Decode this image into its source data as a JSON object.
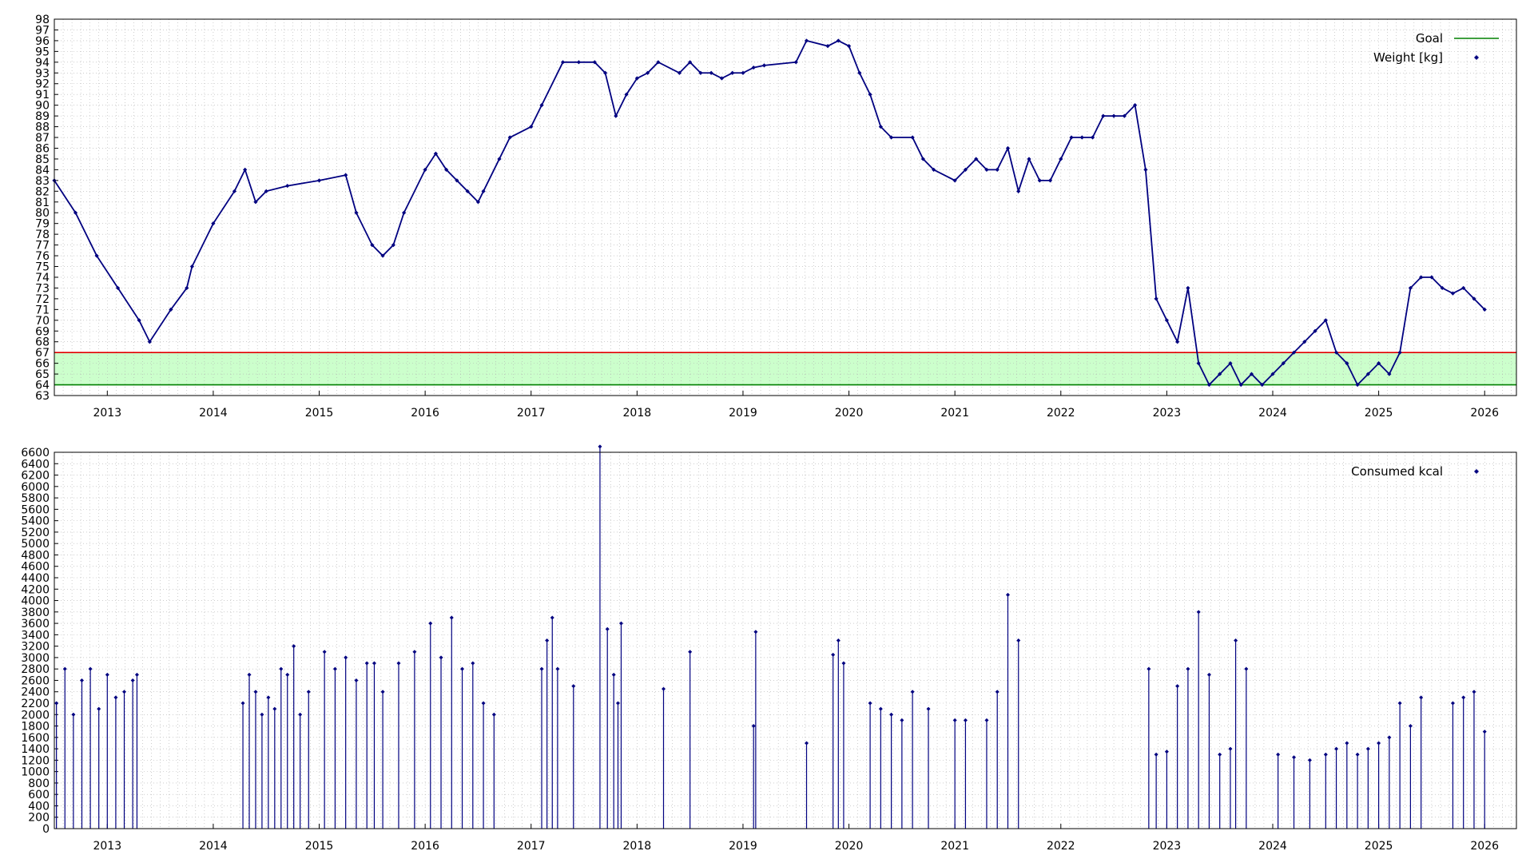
{
  "colors": {
    "series": "#000080",
    "goal": "#008000",
    "upper_limit": "#e00000",
    "goal_band": "#ccffcc",
    "grid": "#b0b0b0",
    "axis": "#000000"
  },
  "chart_data": [
    {
      "type": "line",
      "panel": "weight",
      "xlim": [
        2012.5,
        2026.3
      ],
      "ylim": [
        63,
        98
      ],
      "x_ticks": [
        2013,
        2014,
        2015,
        2016,
        2017,
        2018,
        2019,
        2020,
        2021,
        2022,
        2023,
        2024,
        2025,
        2026
      ],
      "y_ticks": [
        63,
        64,
        65,
        66,
        67,
        68,
        69,
        70,
        71,
        72,
        73,
        74,
        75,
        76,
        77,
        78,
        79,
        80,
        81,
        82,
        83,
        84,
        85,
        86,
        87,
        88,
        89,
        90,
        91,
        92,
        93,
        94,
        95,
        96,
        97,
        98
      ],
      "grid": true,
      "legend_position": "top-right",
      "goal_band": [
        64,
        67
      ],
      "legend": [
        {
          "label": "Goal",
          "style": "line"
        },
        {
          "label": "Weight [kg]",
          "style": "points"
        }
      ],
      "series": [
        {
          "name": "Weight [kg]",
          "x": [
            2012.5,
            2012.7,
            2012.9,
            2013.1,
            2013.3,
            2013.4,
            2013.6,
            2013.75,
            2013.8,
            2014.0,
            2014.2,
            2014.3,
            2014.4,
            2014.5,
            2014.7,
            2015.0,
            2015.25,
            2015.35,
            2015.5,
            2015.6,
            2015.7,
            2015.8,
            2016.0,
            2016.1,
            2016.2,
            2016.3,
            2016.4,
            2016.5,
            2016.55,
            2016.7,
            2016.8,
            2017.0,
            2017.1,
            2017.3,
            2017.45,
            2017.6,
            2017.7,
            2017.8,
            2017.9,
            2018.0,
            2018.1,
            2018.2,
            2018.4,
            2018.5,
            2018.6,
            2018.7,
            2018.8,
            2018.9,
            2019.0,
            2019.1,
            2019.2,
            2019.5,
            2019.6,
            2019.8,
            2019.9,
            2020.0,
            2020.1,
            2020.2,
            2020.3,
            2020.4,
            2020.6,
            2020.7,
            2020.8,
            2021.0,
            2021.1,
            2021.2,
            2021.3,
            2021.4,
            2021.5,
            2021.6,
            2021.7,
            2021.8,
            2021.9,
            2022.0,
            2022.1,
            2022.2,
            2022.3,
            2022.4,
            2022.5,
            2022.6,
            2022.7,
            2022.8,
            2022.9,
            2023.0,
            2023.1,
            2023.2,
            2023.3,
            2023.4,
            2023.5,
            2023.6,
            2023.7,
            2023.8,
            2023.9,
            2024.0,
            2024.1,
            2024.2,
            2024.3,
            2024.4,
            2024.5,
            2024.6,
            2024.7,
            2024.8,
            2024.9,
            2025.0,
            2025.1,
            2025.2,
            2025.3,
            2025.4,
            2025.5,
            2025.6,
            2025.7,
            2025.8,
            2025.9,
            2026.0
          ],
          "y": [
            83,
            80,
            76,
            73,
            70,
            68,
            71,
            73,
            75,
            79,
            82,
            84,
            81,
            82,
            82.5,
            83,
            83.5,
            80,
            77,
            76,
            77,
            80,
            84,
            85.5,
            84,
            83,
            82,
            81,
            82,
            85,
            87,
            88,
            90,
            94,
            94,
            94,
            93,
            89,
            91,
            92.5,
            93,
            94,
            93,
            94,
            93,
            93,
            92.5,
            93,
            93,
            93.5,
            93.7,
            94,
            96,
            95.5,
            96,
            95.5,
            93,
            91,
            88,
            87,
            87,
            85,
            84,
            83,
            84,
            85,
            84,
            84,
            86,
            82,
            85,
            83,
            83,
            85,
            87,
            87,
            87,
            89,
            89,
            89,
            90,
            84,
            72,
            70,
            68,
            73,
            66,
            64,
            65,
            66,
            64,
            65,
            64,
            65,
            66,
            67,
            68,
            69,
            70,
            67,
            66,
            64,
            65,
            66,
            65,
            67,
            73,
            74,
            74,
            73,
            72.5,
            73,
            72,
            71
          ]
        }
      ]
    },
    {
      "type": "bar",
      "panel": "calories",
      "xlim": [
        2012.5,
        2026.3
      ],
      "ylim": [
        0,
        6600
      ],
      "x_ticks": [
        2013,
        2014,
        2015,
        2016,
        2017,
        2018,
        2019,
        2020,
        2021,
        2022,
        2023,
        2024,
        2025,
        2026
      ],
      "y_ticks": [
        0,
        200,
        400,
        600,
        800,
        1000,
        1200,
        1400,
        1600,
        1800,
        2000,
        2200,
        2400,
        2600,
        2800,
        3000,
        3200,
        3400,
        3600,
        3800,
        4000,
        4200,
        4400,
        4600,
        4800,
        5000,
        5200,
        5400,
        5600,
        5800,
        6000,
        6200,
        6400,
        6600
      ],
      "grid": true,
      "legend_position": "top-right",
      "legend": [
        {
          "label": "Consumed kcal",
          "style": "points"
        }
      ],
      "series": [
        {
          "name": "Consumed kcal",
          "x": [
            2012.52,
            2012.6,
            2012.68,
            2012.76,
            2012.84,
            2012.92,
            2013.0,
            2013.08,
            2013.16,
            2013.24,
            2013.28,
            2014.28,
            2014.34,
            2014.4,
            2014.46,
            2014.52,
            2014.58,
            2014.64,
            2014.7,
            2014.76,
            2014.82,
            2014.9,
            2015.05,
            2015.15,
            2015.25,
            2015.35,
            2015.45,
            2015.52,
            2015.6,
            2015.75,
            2015.9,
            2016.05,
            2016.15,
            2016.25,
            2016.35,
            2016.45,
            2016.55,
            2016.65,
            2017.1,
            2017.15,
            2017.2,
            2017.25,
            2017.4,
            2017.65,
            2017.72,
            2017.78,
            2017.82,
            2017.85,
            2018.25,
            2018.5,
            2019.1,
            2019.12,
            2019.6,
            2019.85,
            2019.9,
            2019.95,
            2020.2,
            2020.3,
            2020.4,
            2020.5,
            2020.6,
            2020.75,
            2021.0,
            2021.1,
            2021.3,
            2021.4,
            2021.5,
            2021.6,
            2022.83,
            2022.9,
            2023.0,
            2023.1,
            2023.2,
            2023.3,
            2023.4,
            2023.5,
            2023.6,
            2023.65,
            2023.75,
            2024.05,
            2024.2,
            2024.35,
            2024.5,
            2024.6,
            2024.7,
            2024.8,
            2024.9,
            2025.0,
            2025.1,
            2025.2,
            2025.3,
            2025.4,
            2025.7,
            2025.8,
            2025.9,
            2026.0
          ],
          "y": [
            2200,
            2800,
            2000,
            2600,
            2800,
            2100,
            2700,
            2300,
            2400,
            2600,
            2700,
            2200,
            2700,
            2400,
            2000,
            2300,
            2100,
            2800,
            2700,
            3200,
            2000,
            2400,
            3100,
            2800,
            3000,
            2600,
            2900,
            2900,
            2400,
            2900,
            3100,
            3600,
            3000,
            3700,
            2800,
            2900,
            2200,
            2000,
            2800,
            3300,
            3700,
            2800,
            2500,
            6700,
            3500,
            2700,
            2200,
            3600,
            2450,
            3100,
            1800,
            3450,
            1500,
            3050,
            3300,
            2900,
            2200,
            2100,
            2000,
            1900,
            2400,
            2100,
            1900,
            1900,
            1900,
            2400,
            4100,
            3300,
            2800,
            1300,
            1350,
            2500,
            2800,
            3800,
            2700,
            1300,
            1400,
            3300,
            2800,
            1300,
            1250,
            1200,
            1300,
            1400,
            1500,
            1300,
            1400,
            1500,
            1600,
            2200,
            1800,
            2300,
            2200,
            2300,
            2400,
            1700
          ]
        }
      ]
    }
  ]
}
